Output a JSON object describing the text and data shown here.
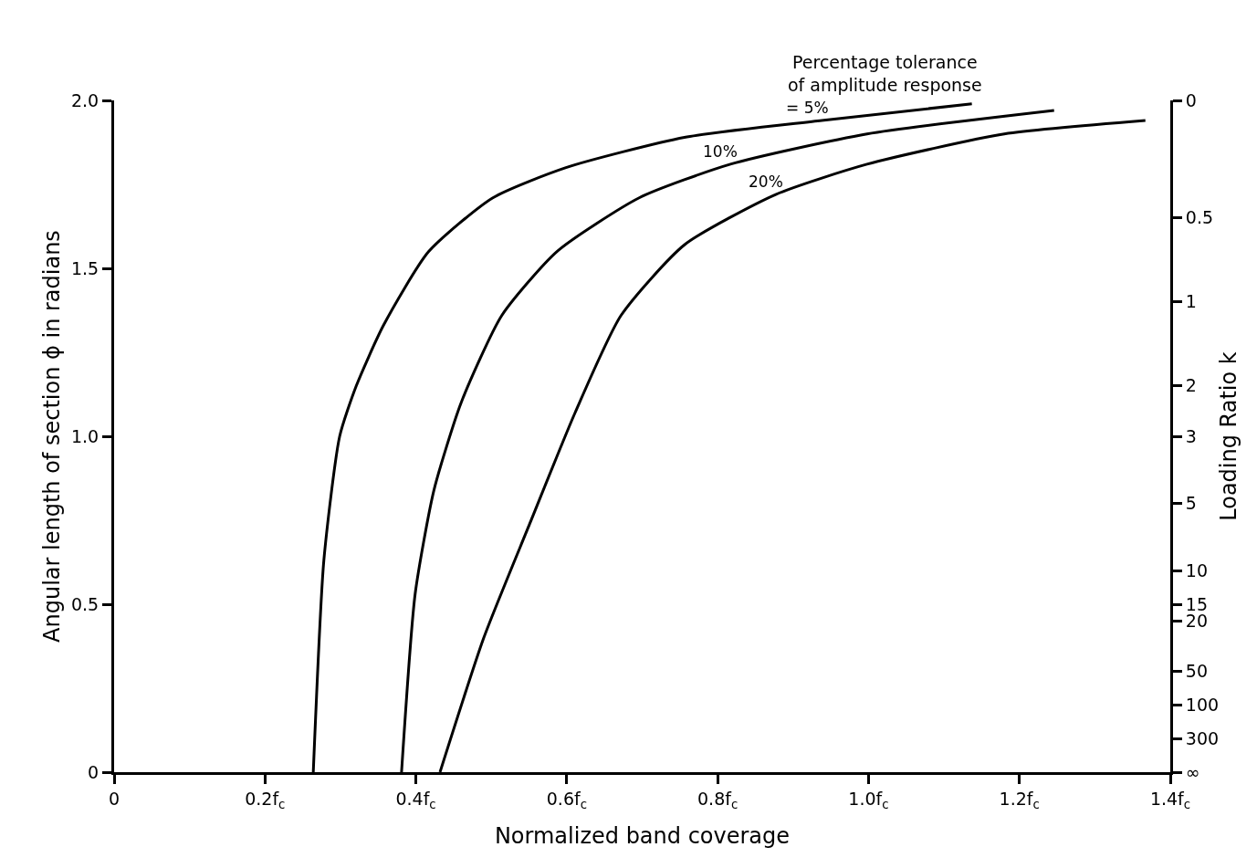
{
  "chart_data": {
    "type": "line",
    "xlabel": "Normalized band coverage",
    "ylabel": "Angular length of section ϕ in radians",
    "y2label": "Loading Ratio k",
    "annotations": [
      "Percentage tolerance\nof amplitude response"
    ],
    "xlim": [
      0,
      1.4
    ],
    "xticks": [
      0,
      {
        "value": 0.2,
        "label": "0.2f$_{c}$"
      },
      {
        "value": 0.4,
        "label": "0.4f$_{c}$"
      },
      {
        "value": 0.6,
        "label": "0.6f$_{c}$"
      },
      {
        "value": 0.8,
        "label": "0.8f$_{c}$"
      },
      {
        "value": 1.0,
        "label": "1.0f$_{c}$"
      },
      {
        "value": 1.2,
        "label": "1.2f$_{c}$"
      },
      {
        "value": 1.4,
        "label": "1.4f$_{c}$"
      }
    ],
    "ylim": [
      0,
      2
    ],
    "yticks": [
      0,
      {
        "value": 0.5,
        "label": "0.5"
      },
      {
        "value": 1.0,
        "label": "1.0"
      },
      {
        "value": 1.5,
        "label": "1.5"
      },
      {
        "value": 2.0,
        "label": "2.0"
      }
    ],
    "y2_categories": [
      "0",
      null,
      null,
      null,
      null,
      null,
      null,
      "0.5",
      null,
      null,
      null,
      null,
      "1",
      null,
      null,
      null,
      null,
      "2",
      null,
      null,
      "3",
      null,
      null,
      null,
      "5",
      null,
      null,
      null,
      "10",
      null,
      "15",
      "20",
      null,
      null,
      "50",
      null,
      "100",
      null,
      "300",
      null,
      "∞"
    ],
    "grid": false,
    "legend": false,
    "marker": "none",
    "line_style": "solid",
    "series": [
      {
        "name": "= 5%",
        "color": "#000000",
        "x": [
          0.264,
          0.278,
          0.299,
          0.321,
          0.357,
          0.417,
          0.502,
          0.599,
          0.756,
          0.938,
          1.137
        ],
        "values": [
          0,
          0.63,
          1.0,
          1.15,
          1.33,
          1.55,
          1.71,
          1.8,
          1.89,
          1.94,
          1.99
        ]
      },
      {
        "name": "10%",
        "color": "#000000",
        "x": [
          0.381,
          0.399,
          0.424,
          0.46,
          0.514,
          0.587,
          0.696,
          0.817,
          0.998,
          1.246
        ],
        "values": [
          0,
          0.53,
          0.84,
          1.1,
          1.36,
          1.55,
          1.71,
          1.81,
          1.9,
          1.97
        ]
      },
      {
        "name": "20%",
        "color": "#000000",
        "x": [
          0.432,
          0.49,
          0.551,
          0.611,
          0.672,
          0.756,
          0.877,
          0.998,
          1.18,
          1.367
        ],
        "values": [
          0,
          0.4,
          0.74,
          1.07,
          1.36,
          1.57,
          1.72,
          1.81,
          1.9,
          1.94
        ]
      }
    ]
  }
}
